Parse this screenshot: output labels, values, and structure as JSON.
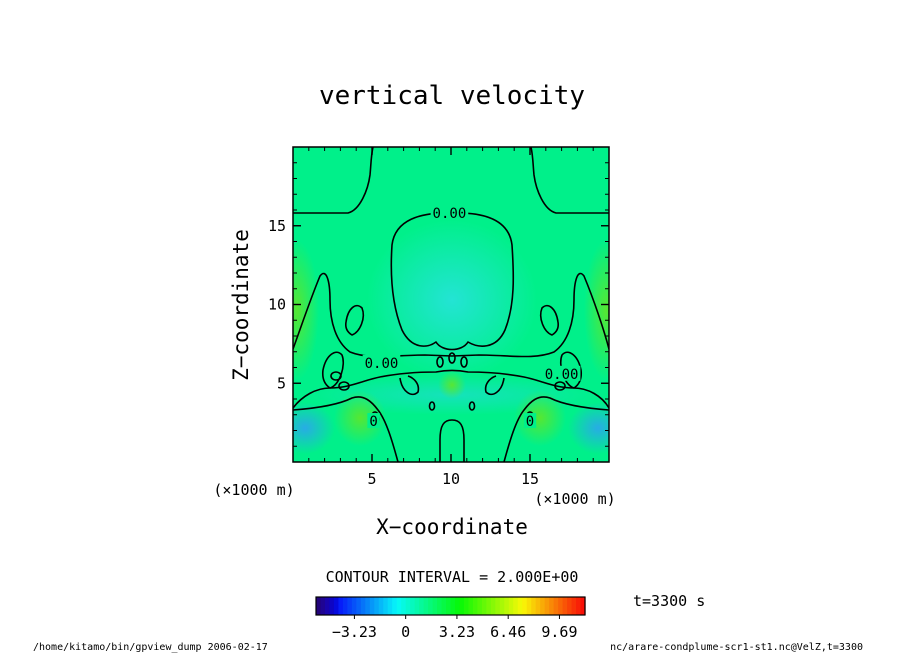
{
  "chart_data": {
    "type": "heatmap",
    "title": "vertical velocity",
    "xlabel": "X−coordinate",
    "ylabel": "Z−coordinate",
    "x_unit": "(×1000 m)",
    "y_unit": "(×1000 m)",
    "xlim": [
      0,
      20
    ],
    "ylim": [
      0,
      20
    ],
    "x_ticks": [
      "5",
      "10",
      "15"
    ],
    "x_tick_values": [
      5,
      10,
      15
    ],
    "y_ticks": [
      "5",
      "10",
      "15"
    ],
    "y_tick_values": [
      5,
      10,
      15
    ],
    "contour_interval": "CONTOUR INTERVAL = 2.000E+00",
    "contour_labels": [
      {
        "text": "0.00",
        "x": 9.9,
        "z": 15.8
      },
      {
        "text": "0.00",
        "x": 5.6,
        "z": 6.3
      },
      {
        "text": "0.00",
        "x": 17.0,
        "z": 5.6
      },
      {
        "text": "0",
        "x": 5.1,
        "z": 2.6
      },
      {
        "text": "0",
        "x": 15.0,
        "z": 2.6
      }
    ],
    "colorbar": {
      "tick_labels": [
        "−3.23",
        "0",
        "3.23",
        "6.46",
        "9.69"
      ],
      "tick_values": [
        -3.23,
        0,
        3.23,
        6.46,
        9.69
      ],
      "range": [
        -5.65,
        11.3
      ]
    },
    "grid": false
  },
  "time_label": "t=3300 s",
  "footer": {
    "left": "/home/kitamo/bin/gpview_dump  2006-02-17",
    "right": "nc/arare-condplume-scr1-st1.nc@VelZ,t=3300"
  },
  "colors": {
    "field_background": "#00f08a",
    "updraft_core": "#1ee6d2",
    "surface_downdraft": "#27b5e6",
    "edge_green": "#52e830"
  }
}
